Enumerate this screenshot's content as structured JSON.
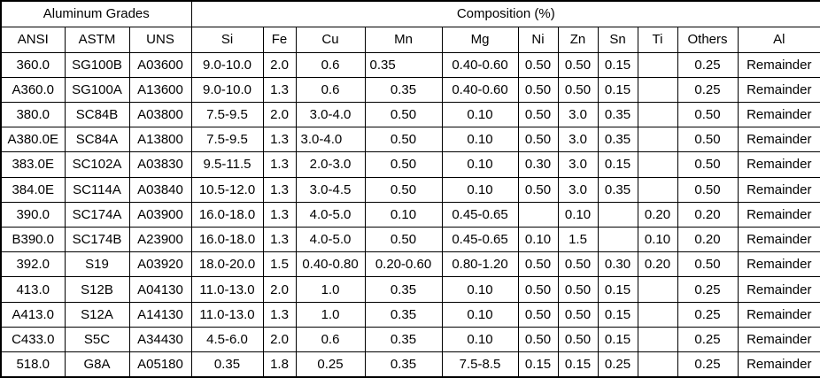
{
  "table": {
    "group_headers": [
      {
        "label": "Aluminum Grades",
        "colspan": 3
      },
      {
        "label": "Composition (%)",
        "colspan": 11
      }
    ],
    "columns": [
      "ANSI",
      "ASTM",
      "UNS",
      "Si",
      "Fe",
      "Cu",
      "Mn",
      "Mg",
      "Ni",
      "Zn",
      "Sn",
      "Ti",
      "Others",
      "Al"
    ],
    "rows": [
      [
        "360.0",
        "SG100B",
        "A03600",
        "9.0-10.0",
        "2.0",
        "0.6",
        "0.35",
        "0.40-0.60",
        "0.50",
        "0.50",
        "0.15",
        "",
        "0.25",
        "Remainder"
      ],
      [
        "A360.0",
        "SG100A",
        "A13600",
        "9.0-10.0",
        "1.3",
        "0.6",
        "0.35",
        "0.40-0.60",
        "0.50",
        "0.50",
        "0.15",
        "",
        "0.25",
        "Remainder"
      ],
      [
        "380.0",
        "SC84B",
        "A03800",
        "7.5-9.5",
        "2.0",
        "3.0-4.0",
        "0.50",
        "0.10",
        "0.50",
        "3.0",
        "0.35",
        "",
        "0.50",
        "Remainder"
      ],
      [
        "A380.0E",
        "SC84A",
        "A13800",
        "7.5-9.5",
        "1.3",
        "3.0-4.0",
        "0.50",
        "0.10",
        "0.50",
        "3.0",
        "0.35",
        "",
        "0.50",
        "Remainder"
      ],
      [
        "383.0E",
        "SC102A",
        "A03830",
        "9.5-11.5",
        "1.3",
        "2.0-3.0",
        "0.50",
        "0.10",
        "0.30",
        "3.0",
        "0.15",
        "",
        "0.50",
        "Remainder"
      ],
      [
        "384.0E",
        "SC114A",
        "A03840",
        "10.5-12.0",
        "1.3",
        "3.0-4.5",
        "0.50",
        "0.10",
        "0.50",
        "3.0",
        "0.35",
        "",
        "0.50",
        "Remainder"
      ],
      [
        "390.0",
        "SC174A",
        "A03900",
        "16.0-18.0",
        "1.3",
        "4.0-5.0",
        "0.10",
        "0.45-0.65",
        "",
        "0.10",
        "",
        "0.20",
        "0.20",
        "Remainder"
      ],
      [
        "B390.0",
        "SC174B",
        "A23900",
        "16.0-18.0",
        "1.3",
        "4.0-5.0",
        "0.50",
        "0.45-0.65",
        "0.10",
        "1.5",
        "",
        "0.10",
        "0.20",
        "Remainder"
      ],
      [
        "392.0",
        "S19",
        "A03920",
        "18.0-20.0",
        "1.5",
        "0.40-0.80",
        "0.20-0.60",
        "0.80-1.20",
        "0.50",
        "0.50",
        "0.30",
        "0.20",
        "0.50",
        "Remainder"
      ],
      [
        "413.0",
        "S12B",
        "A04130",
        "11.0-13.0",
        "2.0",
        "1.0",
        "0.35",
        "0.10",
        "0.50",
        "0.50",
        "0.15",
        "",
        "0.25",
        "Remainder"
      ],
      [
        "A413.0",
        "S12A",
        "A14130",
        "11.0-13.0",
        "1.3",
        "1.0",
        "0.35",
        "0.10",
        "0.50",
        "0.50",
        "0.15",
        "",
        "0.25",
        "Remainder"
      ],
      [
        "C433.0",
        "S5C",
        "A34430",
        "4.5-6.0",
        "2.0",
        "0.6",
        "0.35",
        "0.10",
        "0.50",
        "0.50",
        "0.15",
        "",
        "0.25",
        "Remainder"
      ],
      [
        "518.0",
        "G8A",
        "A05180",
        "0.35",
        "1.8",
        "0.25",
        "0.35",
        "7.5-8.5",
        "0.15",
        "0.15",
        "0.25",
        "",
        "0.25",
        "Remainder"
      ]
    ],
    "align_overrides": [
      {
        "row": 0,
        "col": 6,
        "align": "left"
      },
      {
        "row": 3,
        "col": 5,
        "align": "left"
      }
    ],
    "colors": {
      "border": "#000000",
      "text": "#000000",
      "background": "#ffffff"
    }
  }
}
